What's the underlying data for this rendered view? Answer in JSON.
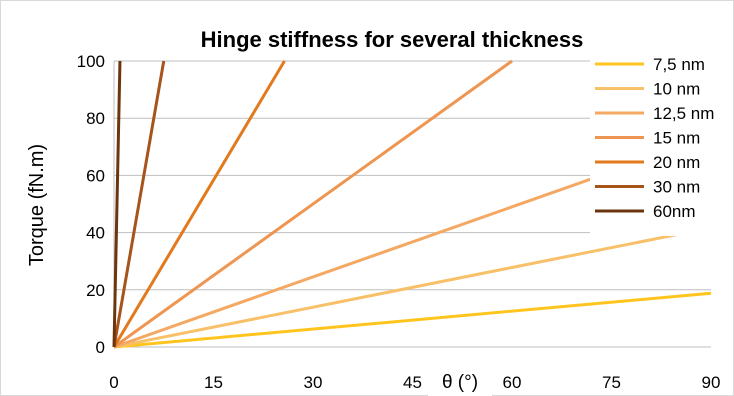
{
  "chart_data": {
    "type": "line",
    "title": "Hinge stiffness for several thickness",
    "xlabel": "θ (°)",
    "ylabel": "Torque  (fN.m)",
    "xlim": [
      0,
      90
    ],
    "ylim": [
      0,
      100
    ],
    "xticks": [
      0,
      15,
      30,
      45,
      60,
      75,
      90
    ],
    "yticks": [
      0,
      20,
      40,
      60,
      80,
      100
    ],
    "grid": "horizontal",
    "legend_position": "right",
    "series": [
      {
        "name": "7,5 nm",
        "color": "#FFC51E",
        "x": [
          0,
          90
        ],
        "y": [
          0,
          18.8
        ]
      },
      {
        "name": "10 nm",
        "color": "#F8C068",
        "x": [
          0,
          90
        ],
        "y": [
          0,
          41.7
        ]
      },
      {
        "name": "12,5 nm",
        "color": "#F4A862",
        "x": [
          0,
          90
        ],
        "y": [
          0,
          73.5
        ]
      },
      {
        "name": "15 nm",
        "color": "#EE9651",
        "x": [
          0,
          60
        ],
        "y": [
          0,
          100
        ]
      },
      {
        "name": "20 nm",
        "color": "#E2791D",
        "x": [
          0,
          25.7
        ],
        "y": [
          0,
          100
        ]
      },
      {
        "name": "30 nm",
        "color": "#A6541A",
        "x": [
          0,
          7.5
        ],
        "y": [
          0,
          100
        ]
      },
      {
        "name": "60nm",
        "color": "#6B360E",
        "x": [
          0,
          0.9
        ],
        "y": [
          0,
          100
        ]
      }
    ]
  }
}
